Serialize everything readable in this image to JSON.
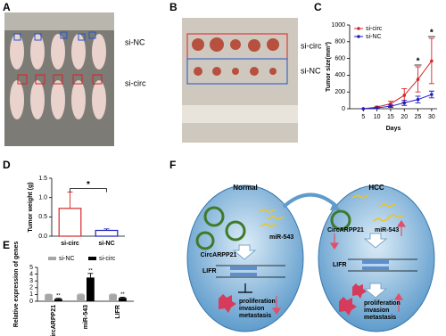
{
  "panels": [
    "A",
    "B",
    "C",
    "D",
    "E",
    "F"
  ],
  "photo_a": {
    "labels": [
      "si-NC",
      "si-circ"
    ]
  },
  "photo_b": {
    "labels": [
      "si-circ",
      "si-NC"
    ]
  },
  "chart_data": [
    {
      "type": "line",
      "x": [
        5,
        10,
        15,
        20,
        25,
        30
      ],
      "xlim": [
        0,
        32
      ],
      "xticks": [
        5,
        10,
        15,
        20,
        25,
        30
      ],
      "ylim": [
        0,
        1000
      ],
      "yticks": [
        0,
        200,
        400,
        600,
        800,
        1000
      ],
      "y_label": "Tumor size(mm³)",
      "x_label": "Days",
      "legend": "upper left",
      "series": [
        {
          "name": "si-circ",
          "color": "#d62728",
          "values": [
            0,
            20,
            60,
            160,
            350,
            570
          ],
          "errors": [
            0,
            10,
            30,
            80,
            150,
            270
          ]
        },
        {
          "name": "si-NC",
          "color": "#1f1fbf",
          "values": [
            0,
            10,
            30,
            70,
            110,
            170
          ],
          "errors": [
            0,
            5,
            15,
            30,
            40,
            40
          ]
        }
      ],
      "annotations": [
        {
          "text": "*",
          "x": 25
        },
        {
          "text": "*",
          "x": 30
        }
      ]
    },
    {
      "type": "bar",
      "categories": [
        "si-circ",
        "si-NC"
      ],
      "values": [
        0.72,
        0.15
      ],
      "errors": [
        0.42,
        0.04
      ],
      "colors": [
        "#d62728",
        "#1f1fbf"
      ],
      "ylim": [
        0,
        1.5
      ],
      "yticks": [
        {
          "value": 0,
          "label": "0.0"
        },
        {
          "value": 0.5,
          "label": "0.5"
        },
        {
          "value": 1,
          "label": "1.0"
        },
        {
          "value": 1.5,
          "label": "1.5"
        }
      ],
      "y_label": "Tumor weight (g)",
      "annotations": [
        {
          "text": "*"
        }
      ]
    },
    {
      "type": "grouped_bar",
      "categories": [
        "circARPP21",
        "miR-543",
        "LIFR"
      ],
      "ylim": [
        0,
        5
      ],
      "yticks": [
        0,
        1,
        2,
        3,
        4,
        5
      ],
      "y_label": "Relative expression of genes",
      "legend": "top",
      "series": [
        {
          "name": "si-NC",
          "color": "#a6a6a6",
          "values": [
            1,
            1,
            1
          ],
          "errors": [
            0.05,
            0.08,
            0.06
          ]
        },
        {
          "name": "si-circ",
          "color": "#000000",
          "values": [
            0.35,
            3.5,
            0.5
          ],
          "errors": [
            0.08,
            0.6,
            0.1
          ]
        }
      ],
      "annotations": [
        {
          "text": "**",
          "category": "circARPP21"
        },
        {
          "text": "**",
          "category": "miR-543"
        },
        {
          "text": "**",
          "category": "LIFR"
        }
      ]
    }
  ],
  "diagram": {
    "left": {
      "title": "Normal",
      "circ": "CircARPP21",
      "mir": "miR-543",
      "lifr": "LIFR",
      "outcome": [
        "proliferation",
        "invasion",
        "metastasis"
      ]
    },
    "right": {
      "title": "HCC",
      "circ": "CircARPP21",
      "mir": "miR-543",
      "lifr": "LIFR",
      "outcome": [
        "proliferation",
        "invasion",
        "metastasis"
      ]
    }
  }
}
